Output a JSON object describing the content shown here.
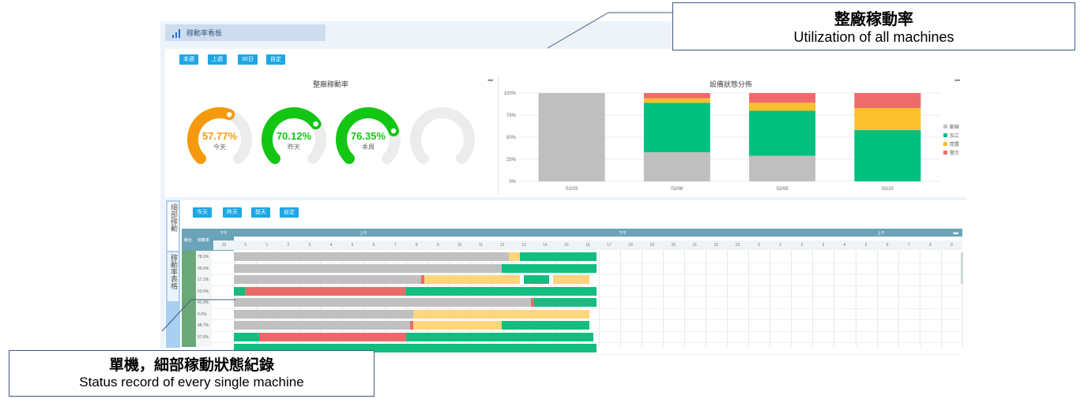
{
  "app": {
    "title": "稼動率看板",
    "period_buttons": [
      "本週",
      "上週",
      "30日",
      "自定"
    ],
    "day_buttons": [
      "今天",
      "昨天",
      "前天",
      "自定"
    ]
  },
  "utilization_panel": {
    "title": "整廠稼動率",
    "gauges": [
      {
        "value": "57.77%",
        "label": "今天",
        "fraction": 0.5777,
        "color": "#f59a0c"
      },
      {
        "value": "70.12%",
        "label": "昨天",
        "fraction": 0.7012,
        "color": "#13c613"
      },
      {
        "value": "76.35%",
        "label": "本周",
        "fraction": 0.7635,
        "color": "#13c613"
      },
      {
        "value": "",
        "label": "",
        "fraction": 0,
        "color": "#e8e8e8"
      }
    ]
  },
  "status_panel": {
    "title": "設備狀態分佈",
    "legend": [
      {
        "name": "斷線",
        "color": "#bfbfbf"
      },
      {
        "name": "加工",
        "color": "#00c07f"
      },
      {
        "name": "閒置",
        "color": "#fcbf2e"
      },
      {
        "name": "警示",
        "color": "#ef6b6b"
      }
    ]
  },
  "chart_data": {
    "type": "bar",
    "stacked": true,
    "categories": [
      "02/03",
      "02/08",
      "02/09",
      "02/10"
    ],
    "ylim": [
      0,
      100
    ],
    "yticks": [
      "0%",
      "25%",
      "50%",
      "75%",
      "100%"
    ],
    "series": [
      {
        "name": "斷線",
        "values": [
          100,
          33,
          29,
          0
        ]
      },
      {
        "name": "加工",
        "values": [
          0,
          56,
          51,
          58
        ]
      },
      {
        "name": "閒置",
        "values": [
          0,
          5,
          9,
          25
        ]
      },
      {
        "name": "警示",
        "values": [
          0,
          6,
          11,
          17
        ]
      }
    ]
  },
  "lower": {
    "side_tabs": [
      "細部稼動",
      "稼動率表格"
    ],
    "header_col1": "機台",
    "header_col2": "稼動率",
    "periods": [
      "下午",
      "上午",
      "下午",
      "上午"
    ],
    "hours": [
      "23",
      "0",
      "1",
      "2",
      "3",
      "4",
      "5",
      "6",
      "7",
      "8",
      "9",
      "10",
      "11",
      "12",
      "13",
      "14",
      "15",
      "16",
      "17",
      "18",
      "19",
      "20",
      "21",
      "22",
      "23",
      "0",
      "1",
      "2",
      "3",
      "4",
      "5",
      "6",
      "7",
      "8",
      "9"
    ],
    "rows": [
      {
        "pct": "78.0%",
        "segments": [
          [
            "g",
            0,
            0.75
          ],
          [
            "y",
            0.75,
            0.78
          ],
          [
            "gn",
            0.78,
            0.99
          ]
        ]
      },
      {
        "pct": "99.0%",
        "segments": [
          [
            "g",
            0,
            0.73
          ],
          [
            "gn",
            0.73,
            0.99
          ]
        ]
      },
      {
        "pct": "17.1%",
        "segments": [
          [
            "g",
            0,
            0.51
          ],
          [
            "r",
            0.51,
            0.52
          ],
          [
            "y",
            0.52,
            0.78
          ],
          [
            "gn",
            0.79,
            0.86
          ],
          [
            "y",
            0.87,
            0.97
          ]
        ]
      },
      {
        "pct": "53.5%",
        "segments": [
          [
            "gn",
            0,
            0.03
          ],
          [
            "r",
            0.03,
            0.47
          ],
          [
            "gn",
            0.47,
            0.99
          ]
        ]
      },
      {
        "pct": "41.0%",
        "segments": [
          [
            "g",
            0,
            0.81
          ],
          [
            "r",
            0.81,
            0.82
          ],
          [
            "gn",
            0.82,
            0.99
          ]
        ]
      },
      {
        "pct": "0.0%",
        "segments": [
          [
            "g",
            0,
            0.49
          ],
          [
            "y",
            0.49,
            0.97
          ]
        ]
      },
      {
        "pct": "48.7%",
        "segments": [
          [
            "g",
            0,
            0.48
          ],
          [
            "r",
            0.48,
            0.49
          ],
          [
            "y",
            0.49,
            0.73
          ],
          [
            "gn",
            0.73,
            0.97
          ]
        ]
      },
      {
        "pct": "57.8%",
        "segments": [
          [
            "gn",
            0,
            0.07
          ],
          [
            "r",
            0.07,
            0.47
          ],
          [
            "gn",
            0.47,
            0.98
          ]
        ]
      },
      {
        "pct": "",
        "segments": [
          [
            "gn",
            0,
            0.99
          ]
        ]
      }
    ]
  },
  "callouts": {
    "top_zh": "整廠稼動率",
    "top_en": "Utilization of all machines",
    "bottom_zh": "單機，細部稼動狀態紀錄",
    "bottom_en": "Status record of every single machine"
  }
}
